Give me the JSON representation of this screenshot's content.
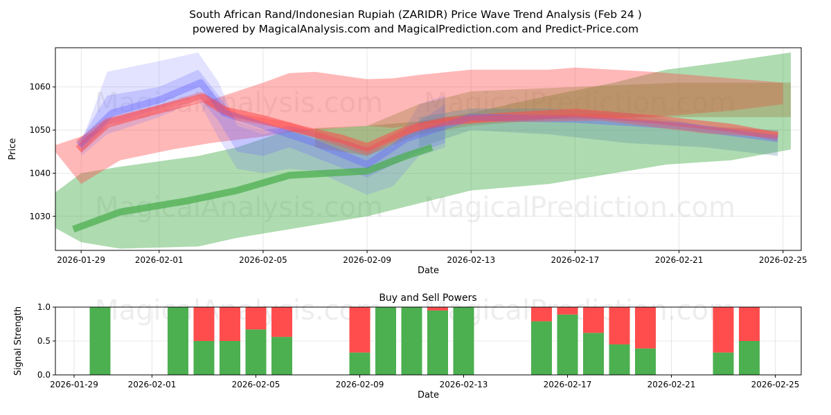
{
  "title_line1": "South African Rand/Indonesian Rupiah (ZARIDR) Price Wave Trend Analysis (Feb 24 )",
  "title_line2": "powered by MagicalAnalysis.com and MagicalPrediction.com and Predict-Price.com",
  "watermarks": [
    "MagicalAnalysis.com",
    "MagicalPrediction.com"
  ],
  "colors": {
    "green": "#4caf50",
    "red": "#ff4d4d",
    "blue": "#6666ff",
    "olive": "#9a7a3a",
    "teal": "#5a8aa0"
  },
  "chart_data": [
    {
      "type": "area",
      "title": "",
      "xlabel": "Date",
      "ylabel": "Price",
      "x_origin_date": "2026-01-29",
      "x_unit": "days since 2026-01-29",
      "xlim": [
        -0.99,
        27.7
      ],
      "ylim": [
        1022.1,
        1069.1
      ],
      "grid": true,
      "xticks": [
        {
          "day": 0,
          "label": "2026-01-29"
        },
        {
          "day": 3,
          "label": "2026-02-01"
        },
        {
          "day": 7,
          "label": "2026-02-05"
        },
        {
          "day": 11,
          "label": "2026-02-09"
        },
        {
          "day": 15,
          "label": "2026-02-13"
        },
        {
          "day": 19,
          "label": "2026-02-17"
        },
        {
          "day": 23,
          "label": "2026-02-21"
        },
        {
          "day": 27,
          "label": "2026-02-25"
        }
      ],
      "yticks": [
        1030,
        1040,
        1050,
        1060
      ],
      "bands": [
        {
          "name": "green-band",
          "color": "green",
          "opacity": 0.45,
          "points": [
            [
              -1,
              1027.3,
              1035.5
            ],
            [
              0,
              1024,
              1040
            ],
            [
              1.5,
              1022.5,
              1041.5
            ],
            [
              4.5,
              1023,
              1044
            ],
            [
              6,
              1025,
              1046
            ],
            [
              8,
              1027,
              1050
            ],
            [
              10,
              1029,
              1050.5
            ],
            [
              11,
              1030,
              1051
            ],
            [
              13,
              1033,
              1052
            ],
            [
              15,
              1036,
              1054
            ],
            [
              18,
              1037.5,
              1058
            ],
            [
              20.5,
              1040,
              1061
            ],
            [
              22.5,
              1042,
              1064
            ],
            [
              25,
              1043,
              1066
            ],
            [
              27.3,
              1045.5,
              1068
            ]
          ]
        },
        {
          "name": "red-band",
          "color": "red",
          "opacity": 0.4,
          "points": [
            [
              -1,
              1045,
              1046.5
            ],
            [
              0,
              1037.5,
              1048.5
            ],
            [
              1.5,
              1043,
              1052
            ],
            [
              3.5,
              1045.5,
              1055
            ],
            [
              5,
              1047,
              1057
            ],
            [
              7,
              1048.5,
              1061
            ],
            [
              8,
              1049.5,
              1063.2
            ],
            [
              9,
              1050,
              1063.5
            ],
            [
              11,
              1051,
              1061.8
            ],
            [
              12,
              1050.5,
              1062
            ],
            [
              13,
              1051.5,
              1062.8
            ],
            [
              15,
              1052,
              1064
            ],
            [
              18,
              1052.5,
              1064
            ],
            [
              19,
              1052.5,
              1064.5
            ],
            [
              22,
              1053,
              1063.5
            ],
            [
              25,
              1054.5,
              1062
            ],
            [
              27,
              1056,
              1061
            ]
          ]
        },
        {
          "name": "blue-band-outer",
          "color": "blue",
          "opacity": 0.18,
          "points": [
            [
              0,
              1044,
              1047
            ],
            [
              1,
              1049,
              1063.5
            ],
            [
              3,
              1053,
              1066
            ],
            [
              4.5,
              1057,
              1068
            ],
            [
              5.3,
              1048,
              1061
            ],
            [
              6,
              1041,
              1051
            ],
            [
              7,
              1040,
              1049
            ],
            [
              8,
              1041,
              1051
            ],
            [
              9,
              1040.5,
              1050
            ],
            [
              11,
              1035,
              1046
            ],
            [
              12,
              1037,
              1046
            ],
            [
              13,
              1044,
              1056
            ],
            [
              14,
              1046,
              1058
            ]
          ]
        },
        {
          "name": "blue-band-inner",
          "color": "blue",
          "opacity": 0.25,
          "points": [
            [
              0,
              1045,
              1048
            ],
            [
              1,
              1051,
              1058
            ],
            [
              3,
              1055,
              1060
            ],
            [
              4.5,
              1058,
              1064
            ],
            [
              5.3,
              1052,
              1058
            ],
            [
              6,
              1045,
              1052
            ],
            [
              7,
              1044,
              1050
            ],
            [
              8,
              1046,
              1051
            ],
            [
              11,
              1039,
              1046
            ],
            [
              13,
              1045,
              1052
            ],
            [
              14,
              1047,
              1056
            ]
          ]
        },
        {
          "name": "olive-band",
          "color": "olive",
          "opacity": 0.35,
          "points": [
            [
              9,
              1046,
              1050.5
            ],
            [
              11,
              1044,
              1051
            ],
            [
              13,
              1049,
              1056
            ],
            [
              15,
              1051,
              1059
            ],
            [
              19,
              1053,
              1060
            ],
            [
              23,
              1053,
              1061
            ],
            [
              27.3,
              1053,
              1061
            ]
          ]
        },
        {
          "name": "teal-band",
          "color": "teal",
          "opacity": 0.3,
          "points": [
            [
              13,
              1046,
              1053
            ],
            [
              15,
              1050,
              1055
            ],
            [
              18,
              1049,
              1055
            ],
            [
              21,
              1047,
              1054
            ],
            [
              24,
              1046,
              1051
            ],
            [
              26.8,
              1044,
              1050
            ]
          ]
        }
      ],
      "lines": [
        {
          "name": "green-trend",
          "color": "green",
          "opacity": 0.75,
          "width": 10,
          "points": [
            [
              -0.3,
              1027
            ],
            [
              1.5,
              1031
            ],
            [
              4,
              1033.5
            ],
            [
              6,
              1036
            ],
            [
              8,
              1039.5
            ],
            [
              11,
              1040.5
            ],
            [
              12.5,
              1044
            ],
            [
              13.5,
              1046
            ]
          ]
        },
        {
          "name": "red-trend",
          "color": "red",
          "opacity": 0.55,
          "width": 12,
          "points": [
            [
              -0.1,
              1045.5
            ],
            [
              1,
              1051.5
            ],
            [
              2.5,
              1054
            ],
            [
              4.7,
              1057.5
            ],
            [
              5.5,
              1054.5
            ],
            [
              7,
              1052.5
            ],
            [
              8.5,
              1050
            ],
            [
              10,
              1048
            ],
            [
              11,
              1046
            ],
            [
              12.5,
              1050
            ],
            [
              14,
              1052
            ],
            [
              16,
              1053
            ],
            [
              19,
              1054
            ],
            [
              22,
              1052.5
            ],
            [
              25,
              1050.5
            ],
            [
              26.8,
              1048.5
            ]
          ]
        },
        {
          "name": "blue-trend",
          "color": "blue",
          "opacity": 0.4,
          "width": 10,
          "points": [
            [
              -0.1,
              1046.5
            ],
            [
              1.2,
              1054
            ],
            [
              3,
              1057
            ],
            [
              4.6,
              1061
            ],
            [
              5.5,
              1054
            ],
            [
              7,
              1051
            ],
            [
              9,
              1047
            ],
            [
              11,
              1042
            ],
            [
              12.5,
              1048
            ],
            [
              15,
              1053
            ],
            [
              19,
              1052.5
            ],
            [
              23,
              1051
            ],
            [
              26.8,
              1048
            ]
          ]
        },
        {
          "name": "purple-trend",
          "color": "red",
          "opacity": 0.35,
          "width": 10,
          "points": [
            [
              -0.1,
              1047
            ],
            [
              1,
              1052
            ],
            [
              3,
              1055
            ],
            [
              4.6,
              1058
            ],
            [
              6,
              1053
            ],
            [
              8,
              1051
            ],
            [
              11,
              1045
            ],
            [
              13,
              1051
            ],
            [
              15,
              1052.5
            ],
            [
              20,
              1053
            ],
            [
              24,
              1050
            ],
            [
              26.8,
              1049
            ]
          ]
        }
      ]
    },
    {
      "type": "bar",
      "title": "Buy and Sell Powers",
      "xlabel": "Date",
      "ylabel": "Signal Strength",
      "x_origin_date": "2026-01-29",
      "xlim": [
        -0.72,
        28.0
      ],
      "ylim": [
        0,
        1.0
      ],
      "yticks": [
        "0.0",
        "0.5",
        "1.0"
      ],
      "xticks": [
        {
          "day": 0,
          "label": "2026-01-29"
        },
        {
          "day": 3,
          "label": "2026-02-01"
        },
        {
          "day": 7,
          "label": "2026-02-05"
        },
        {
          "day": 11,
          "label": "2026-02-09"
        },
        {
          "day": 15,
          "label": "2026-02-13"
        },
        {
          "day": 19,
          "label": "2026-02-17"
        },
        {
          "day": 23,
          "label": "2026-02-21"
        },
        {
          "day": 27,
          "label": "2026-02-25"
        }
      ],
      "categories": [
        "2026-01-30",
        "2026-02-02",
        "2026-02-03",
        "2026-02-04",
        "2026-02-05",
        "2026-02-06",
        "2026-02-09",
        "2026-02-10",
        "2026-02-11",
        "2026-02-12",
        "2026-02-13",
        "2026-02-16",
        "2026-02-17",
        "2026-02-18",
        "2026-02-19",
        "2026-02-20",
        "2026-02-23",
        "2026-02-24"
      ],
      "days": [
        1,
        4,
        5,
        6,
        7,
        8,
        11,
        12,
        13,
        14,
        15,
        18,
        19,
        20,
        21,
        22,
        25,
        26
      ],
      "series": [
        {
          "name": "Buy",
          "color": "#4caf50",
          "values": [
            1.0,
            1.0,
            0.5,
            0.5,
            0.67,
            0.56,
            0.33,
            1.0,
            1.0,
            0.95,
            1.0,
            0.79,
            0.89,
            0.62,
            0.45,
            0.39,
            0.33,
            0.5
          ]
        },
        {
          "name": "Sell",
          "color": "#ff4d4d",
          "values": [
            0.0,
            0.0,
            0.5,
            0.5,
            0.33,
            0.44,
            0.67,
            0.0,
            0.0,
            0.05,
            0.0,
            0.21,
            0.11,
            0.38,
            0.55,
            0.61,
            0.67,
            0.5
          ]
        }
      ]
    }
  ]
}
